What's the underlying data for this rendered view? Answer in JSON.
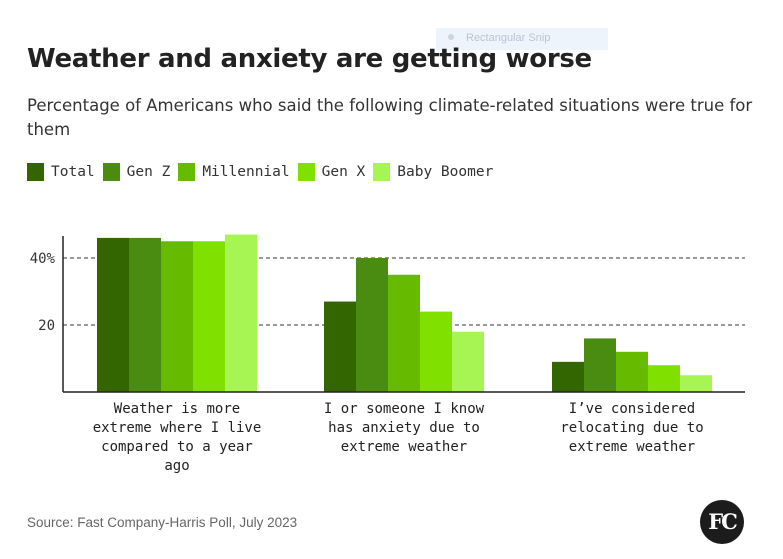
{
  "overlay": {
    "snip_label": "Rectangular Snip"
  },
  "title": "Weather and anxiety are getting worse",
  "subtitle": "Percentage of Americans who said the following climate-related situations were true for them",
  "source": "Source: Fast Company-Harris Poll, July 2023",
  "logo_text": "FC",
  "chart_data": {
    "type": "bar",
    "title": "Weather and anxiety are getting worse",
    "subtitle": "Percentage of Americans who said the following climate-related situations were true for them",
    "categories": [
      "Weather is more extreme where I live compared to a year ago",
      "I or someone I know has anxiety due to extreme weather",
      "I've considered relocating due to extreme weather"
    ],
    "category_lines": [
      [
        "Weather is more",
        "extreme where I live",
        "compared to a year",
        "ago"
      ],
      [
        "I or someone I know",
        "has anxiety due to",
        "extreme weather"
      ],
      [
        "I’ve considered",
        "relocating due to",
        "extreme weather"
      ]
    ],
    "series": [
      {
        "name": "Total",
        "color": "#336600",
        "values": [
          46,
          27,
          9
        ]
      },
      {
        "name": "Gen Z",
        "color": "#4a8c12",
        "values": [
          46,
          40,
          16
        ]
      },
      {
        "name": "Millennial",
        "color": "#66bb00",
        "values": [
          45,
          35,
          12
        ]
      },
      {
        "name": "Gen X",
        "color": "#80e000",
        "values": [
          45,
          24,
          8
        ]
      },
      {
        "name": "Baby Boomer",
        "color": "#a6f553",
        "values": [
          47,
          18,
          5
        ]
      }
    ],
    "y_ticks": [
      {
        "value": 20,
        "label": "20"
      },
      {
        "value": 40,
        "label": "40%"
      }
    ],
    "ylim": [
      0,
      47
    ],
    "grid": "dashed",
    "legend_position": "top-left"
  }
}
